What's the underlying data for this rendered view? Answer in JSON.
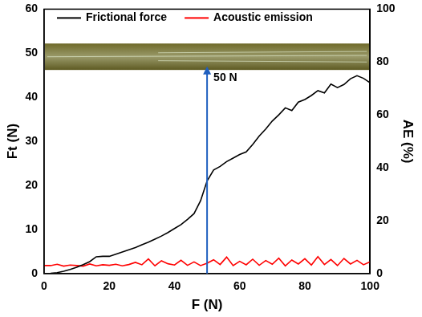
{
  "chart_data": {
    "type": "line",
    "x_label": "F (N)",
    "y_label": "Ft (N)",
    "y2_label": "AE (%)",
    "xlim": [
      0,
      100
    ],
    "xticks": [
      0,
      20,
      40,
      60,
      80,
      100
    ],
    "ylim": [
      0,
      60
    ],
    "yticks": [
      0,
      10,
      20,
      30,
      40,
      50,
      60
    ],
    "y2lim": [
      0,
      100
    ],
    "y2ticks": [
      0,
      20,
      40,
      60,
      80,
      100
    ],
    "grid": false,
    "legend": "upper left",
    "x": [
      0,
      2,
      4,
      6,
      8,
      10,
      12,
      14,
      16,
      18,
      20,
      22,
      24,
      26,
      28,
      30,
      32,
      34,
      36,
      38,
      40,
      42,
      44,
      46,
      48,
      50,
      52,
      54,
      56,
      58,
      60,
      62,
      64,
      66,
      68,
      70,
      72,
      74,
      76,
      78,
      80,
      82,
      84,
      86,
      88,
      90,
      92,
      94,
      96,
      98,
      100
    ],
    "series": [
      {
        "name": "Frictional force",
        "color": "#000000",
        "line_style": "solid",
        "values": [
          0,
          0.05,
          0.2,
          0.5,
          0.9,
          1.4,
          2.0,
          2.7,
          3.8,
          3.9,
          3.9,
          4.4,
          4.9,
          5.4,
          5.9,
          6.5,
          7.1,
          7.8,
          8.5,
          9.3,
          10.2,
          11.1,
          12.3,
          13.6,
          16.5,
          21.0,
          23.5,
          24.3,
          25.4,
          26.2,
          27.0,
          27.6,
          29.3,
          31.2,
          32.8,
          34.6,
          36.0,
          37.6,
          37.0,
          38.9,
          39.5,
          40.4,
          41.5,
          41.0,
          43.0,
          42.2,
          42.9,
          44.2,
          44.9,
          44.3,
          43.3
        ]
      },
      {
        "name": "Acoustic emission",
        "color": "#ff0000",
        "line_style": "solid",
        "axis": "y2",
        "values": [
          3.0,
          3.0,
          3.5,
          2.8,
          3.2,
          3.0,
          2.8,
          3.6,
          2.9,
          3.3,
          3.1,
          3.5,
          2.9,
          3.4,
          4.2,
          3.3,
          5.5,
          2.9,
          4.8,
          3.7,
          3.2,
          5.0,
          3.1,
          4.4,
          3.0,
          3.9,
          5.2,
          3.4,
          6.2,
          3.0,
          4.6,
          3.3,
          5.4,
          3.1,
          4.9,
          3.5,
          5.8,
          2.9,
          5.1,
          3.6,
          5.6,
          3.2,
          6.4,
          3.4,
          5.3,
          3.0,
          5.7,
          3.6,
          5.0,
          3.3,
          4.4
        ]
      }
    ],
    "annotations": [
      {
        "text": "50 N",
        "x": 50,
        "y_end": 47
      }
    ]
  }
}
